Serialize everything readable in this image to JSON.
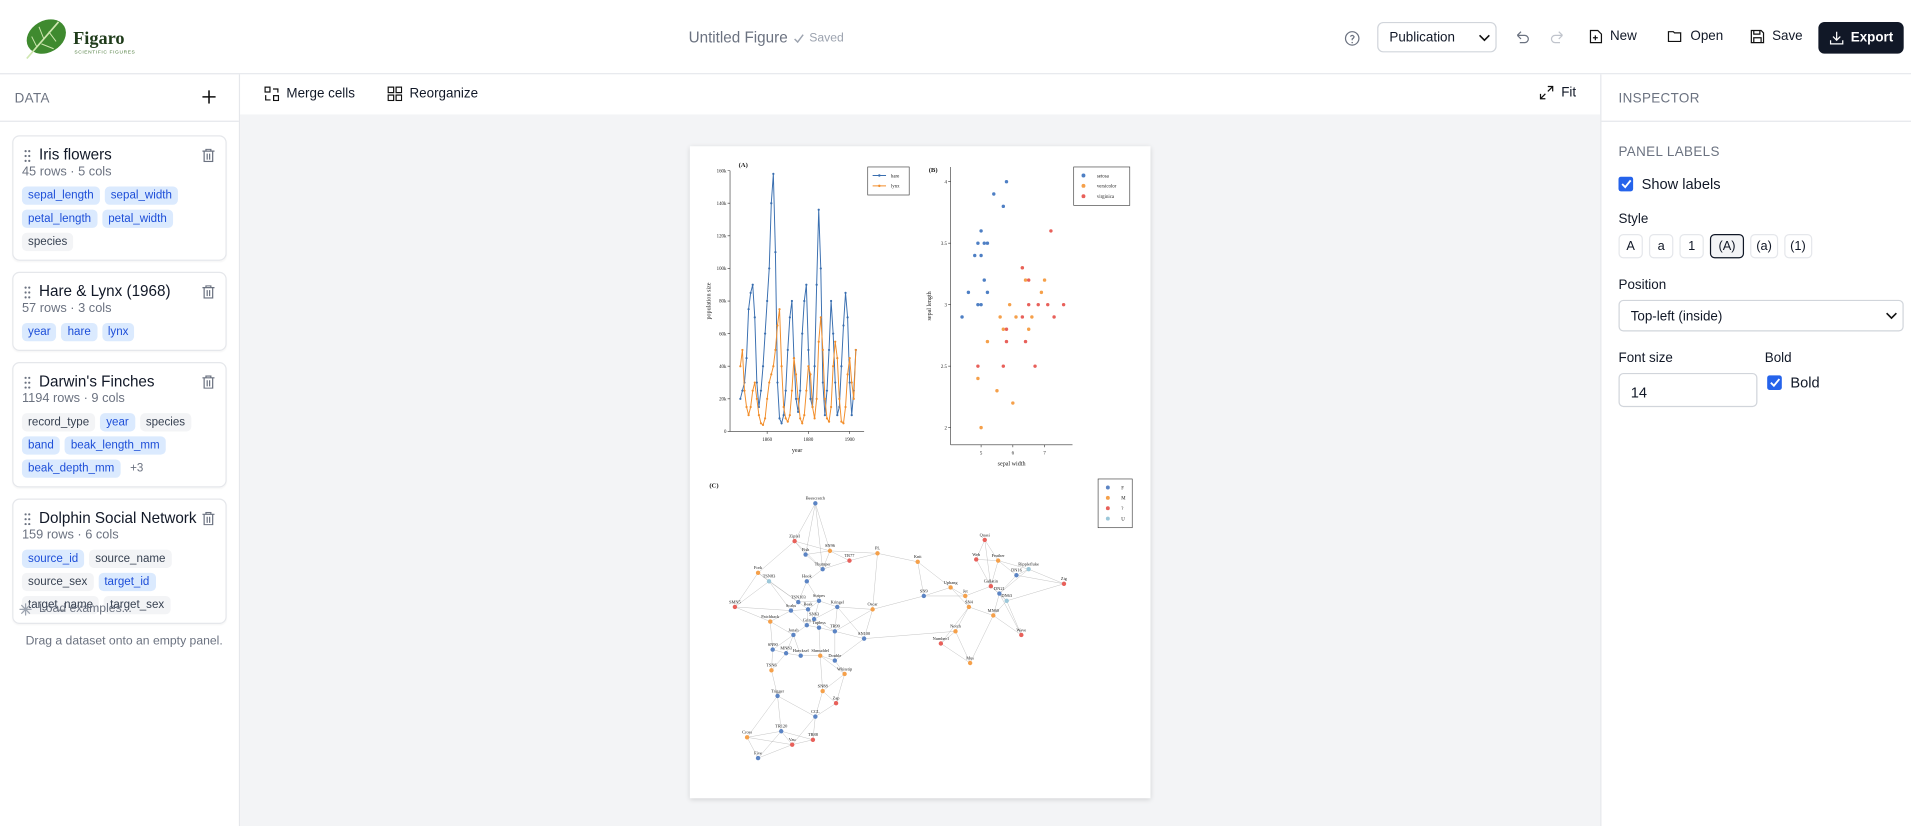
{
  "header": {
    "logo_name": "Figaro",
    "logo_tagline": "SCIENTIFIC FIGURES",
    "doc_title": "Untitled Figure",
    "saved": "Saved",
    "preset": "Publication",
    "new": "New",
    "open": "Open",
    "save": "Save",
    "export": "Export"
  },
  "sidebar": {
    "title": "DATA",
    "datasets": [
      {
        "name": "Iris flowers",
        "meta": "45 rows · 5 cols",
        "columns": [
          {
            "name": "sepal_length",
            "numeric": true
          },
          {
            "name": "sepal_width",
            "numeric": true
          },
          {
            "name": "petal_length",
            "numeric": true
          },
          {
            "name": "petal_width",
            "numeric": true
          },
          {
            "name": "species",
            "numeric": false
          }
        ]
      },
      {
        "name": "Hare & Lynx (1968)",
        "meta": "57 rows · 3 cols",
        "columns": [
          {
            "name": "year",
            "numeric": true
          },
          {
            "name": "hare",
            "numeric": true
          },
          {
            "name": "lynx",
            "numeric": true
          }
        ]
      },
      {
        "name": "Darwin's Finches",
        "meta": "1194 rows · 9 cols",
        "columns": [
          {
            "name": "record_type",
            "numeric": false
          },
          {
            "name": "year",
            "numeric": true
          },
          {
            "name": "species",
            "numeric": false
          },
          {
            "name": "band",
            "numeric": true
          },
          {
            "name": "beak_length_mm",
            "numeric": true
          },
          {
            "name": "beak_depth_mm",
            "numeric": true
          }
        ],
        "more": "+3"
      },
      {
        "name": "Dolphin Social Network",
        "meta": "159 rows · 6 cols",
        "columns": [
          {
            "name": "source_id",
            "numeric": true
          },
          {
            "name": "source_name",
            "numeric": false
          },
          {
            "name": "source_sex",
            "numeric": false
          },
          {
            "name": "target_id",
            "numeric": true
          },
          {
            "name": "target_name",
            "numeric": false
          },
          {
            "name": "target_sex",
            "numeric": false
          }
        ]
      }
    ],
    "load_examples": "Load examples...",
    "hint": "Drag a dataset onto an empty panel."
  },
  "toolbar": {
    "merge": "Merge cells",
    "reorganize": "Reorganize",
    "fit": "Fit"
  },
  "inspector": {
    "title": "INSPECTOR",
    "section": "PANEL LABELS",
    "show_labels": "Show labels",
    "style_label": "Style",
    "styles": [
      "A",
      "a",
      "1",
      "(A)",
      "(a)",
      "(1)"
    ],
    "selected_style": 3,
    "position_label": "Position",
    "position": "Top-left (inside)",
    "font_size_label": "Font size",
    "font_size": 14,
    "bold_label": "Bold",
    "bold_check": "Bold"
  },
  "chart_data": [
    {
      "type": "line",
      "panel_label": "(A)",
      "x_label": "year",
      "y_label": "population size",
      "x": [
        1847,
        1848,
        1849,
        1850,
        1851,
        1852,
        1853,
        1854,
        1855,
        1856,
        1857,
        1858,
        1859,
        1860,
        1861,
        1862,
        1863,
        1864,
        1865,
        1866,
        1867,
        1868,
        1869,
        1870,
        1871,
        1872,
        1873,
        1874,
        1875,
        1876,
        1877,
        1878,
        1879,
        1880,
        1881,
        1882,
        1883,
        1884,
        1885,
        1886,
        1887,
        1888,
        1889,
        1890,
        1891,
        1892,
        1893,
        1894,
        1895,
        1896,
        1897,
        1898,
        1899,
        1900,
        1901,
        1902,
        1903
      ],
      "series": [
        {
          "name": "hare",
          "color": "#3a6fb0",
          "values": [
            20000,
            25000,
            30000,
            45000,
            75000,
            85000,
            90000,
            70000,
            30000,
            15000,
            25000,
            40000,
            60000,
            80000,
            100000,
            140000,
            158000,
            110000,
            30000,
            8000,
            5000,
            10000,
            25000,
            50000,
            70000,
            80000,
            45000,
            20000,
            12000,
            25000,
            60000,
            80000,
            90000,
            50000,
            20000,
            15000,
            40000,
            90000,
            136000,
            100000,
            30000,
            10000,
            25000,
            50000,
            80000,
            60000,
            30000,
            10000,
            15000,
            40000,
            65000,
            85000,
            70000,
            30000,
            10000,
            25000,
            50000
          ]
        },
        {
          "name": "lynx",
          "color": "#f28e2b",
          "values": [
            40000,
            50000,
            25000,
            15000,
            10000,
            15000,
            25000,
            30000,
            20000,
            10000,
            5000,
            4000,
            8000,
            20000,
            30000,
            35000,
            40000,
            50000,
            65000,
            75000,
            40000,
            15000,
            8000,
            6000,
            10000,
            25000,
            45000,
            35000,
            20000,
            8000,
            5000,
            10000,
            25000,
            40000,
            35000,
            15000,
            8000,
            20000,
            55000,
            70000,
            50000,
            20000,
            8000,
            6000,
            15000,
            40000,
            55000,
            45000,
            20000,
            6000,
            5000,
            15000,
            35000,
            45000,
            30000,
            20000,
            50000
          ]
        }
      ],
      "xlim": [
        1842,
        1907
      ],
      "xticks": [
        1860,
        1880,
        1900
      ],
      "ylim": [
        0,
        160000
      ],
      "yticks": [
        {
          "value": 0,
          "label": "0"
        },
        {
          "value": 20000,
          "label": "20k"
        },
        {
          "value": 40000,
          "label": "40k"
        },
        {
          "value": 60000,
          "label": "60k"
        },
        {
          "value": 80000,
          "label": "80k"
        },
        {
          "value": 100000,
          "label": "100k"
        },
        {
          "value": 120000,
          "label": "120k"
        },
        {
          "value": 140000,
          "label": "140k"
        },
        {
          "value": 160000,
          "label": "160k"
        }
      ],
      "legend": "top-right"
    },
    {
      "type": "scatter",
      "panel_label": "(B)",
      "x_label": "sepal width",
      "y_label": "sepal length",
      "series": [
        {
          "name": "setosa",
          "color": "#4e7fc4",
          "x": [
            5.8,
            5.4,
            5.7,
            5.2,
            5.1,
            5.0,
            4.9,
            4.8,
            5.0,
            5.1,
            4.6,
            5.2,
            5.0,
            4.9,
            4.4
          ],
          "values": [
            4.0,
            3.9,
            3.8,
            3.5,
            3.5,
            3.6,
            3.5,
            3.4,
            3.4,
            3.2,
            3.1,
            3.1,
            3.0,
            3.0,
            2.9
          ]
        },
        {
          "name": "versicolor",
          "color": "#f5a04a",
          "x": [
            7.0,
            6.4,
            6.9,
            5.5,
            6.5,
            5.7,
            6.3,
            4.9,
            6.6,
            5.2,
            5.0,
            5.9,
            6.0,
            6.1,
            5.6
          ],
          "values": [
            3.2,
            3.2,
            3.1,
            2.3,
            2.8,
            2.8,
            3.3,
            2.4,
            2.9,
            2.7,
            2.0,
            3.0,
            2.2,
            2.9,
            2.9
          ]
        },
        {
          "name": "virginica",
          "color": "#e8605a",
          "x": [
            6.3,
            5.8,
            7.1,
            6.3,
            6.5,
            7.6,
            4.9,
            7.3,
            6.7,
            7.2,
            6.5,
            6.4,
            6.8,
            5.7,
            5.8
          ],
          "values": [
            3.3,
            2.7,
            3.0,
            2.9,
            3.0,
            3.0,
            2.5,
            2.9,
            2.5,
            3.6,
            3.2,
            2.7,
            3.0,
            2.5,
            2.8
          ]
        }
      ],
      "xlim": [
        4.04,
        7.88
      ],
      "xticks": [
        5,
        6,
        7
      ],
      "ylim": [
        1.86,
        4.12
      ],
      "yticks": [
        2,
        2.5,
        3,
        3.5,
        4
      ],
      "legend": "top-right"
    },
    {
      "type": "network",
      "panel_label": "(C)",
      "groups": [
        {
          "name": "F",
          "color": "#5b84c4"
        },
        {
          "name": "M",
          "color": "#f5a04a"
        },
        {
          "name": "?",
          "color": "#e8605a"
        },
        {
          "name": "U",
          "color": "#9bc7d9"
        }
      ],
      "nodes": [
        {
          "name": "Beescratch",
          "sex": "F"
        },
        {
          "name": "Zipfel",
          "sex": "?"
        },
        {
          "name": "SN96",
          "sex": "M"
        },
        {
          "name": "Fish",
          "sex": "F"
        },
        {
          "name": "TR77",
          "sex": "?"
        },
        {
          "name": "PL",
          "sex": "M"
        },
        {
          "name": "Knit",
          "sex": "M"
        },
        {
          "name": "Quasi",
          "sex": "?"
        },
        {
          "name": "Web",
          "sex": "?"
        },
        {
          "name": "Feather",
          "sex": "M"
        },
        {
          "name": "DN16",
          "sex": "F"
        },
        {
          "name": "Zig",
          "sex": "?"
        },
        {
          "name": "Ripplefluke",
          "sex": "U"
        },
        {
          "name": "Fork",
          "sex": "M"
        },
        {
          "name": "TSN83",
          "sex": "U"
        },
        {
          "name": "Thumper",
          "sex": "F"
        },
        {
          "name": "Hook",
          "sex": "F"
        },
        {
          "name": "Upbang",
          "sex": "M"
        },
        {
          "name": "SN9",
          "sex": "F"
        },
        {
          "name": "Jet",
          "sex": "M"
        },
        {
          "name": "Gallatin",
          "sex": "?"
        },
        {
          "name": "DN21",
          "sex": "F"
        },
        {
          "name": "DN63",
          "sex": "U"
        },
        {
          "name": "SN4",
          "sex": "M"
        },
        {
          "name": "MN60",
          "sex": "M"
        },
        {
          "name": "SMN5",
          "sex": "?"
        },
        {
          "name": "TSN103",
          "sex": "F"
        },
        {
          "name": "Stripes",
          "sex": "F"
        },
        {
          "name": "Kringel",
          "sex": "F"
        },
        {
          "name": "Oscar",
          "sex": "M"
        },
        {
          "name": "Beak",
          "sex": "F"
        },
        {
          "name": "Scabs",
          "sex": "F"
        },
        {
          "name": "Patchback",
          "sex": "M"
        },
        {
          "name": "SN63",
          "sex": "F"
        },
        {
          "name": "Grin",
          "sex": "F"
        },
        {
          "name": "Topless",
          "sex": "F"
        },
        {
          "name": "TR99",
          "sex": "F"
        },
        {
          "name": "SN100",
          "sex": "F"
        },
        {
          "name": "Jonah",
          "sex": "F"
        },
        {
          "name": "Notch",
          "sex": "M"
        },
        {
          "name": "Number1",
          "sex": "?"
        },
        {
          "name": "Mus",
          "sex": "M"
        },
        {
          "name": "Wave",
          "sex": "?"
        },
        {
          "name": "Cross",
          "sex": "M"
        },
        {
          "name": "Shmuddel",
          "sex": "M"
        },
        {
          "name": "SN90",
          "sex": "F"
        },
        {
          "name": "MN83",
          "sex": "F"
        },
        {
          "name": "Double",
          "sex": "F"
        },
        {
          "name": "TSN6",
          "sex": "M"
        },
        {
          "name": "Haecksel",
          "sex": "F"
        },
        {
          "name": "Whitetip",
          "sex": "M"
        },
        {
          "name": "SN88",
          "sex": "M"
        },
        {
          "name": "Trigger",
          "sex": "F"
        },
        {
          "name": "Zap",
          "sex": "?"
        },
        {
          "name": "CCL",
          "sex": "F"
        },
        {
          "name": "TR120",
          "sex": "F"
        },
        {
          "name": "Vau",
          "sex": "?"
        },
        {
          "name": "TR88",
          "sex": "?"
        },
        {
          "name": "Five",
          "sex": "F"
        }
      ],
      "legend": "top-right"
    }
  ]
}
